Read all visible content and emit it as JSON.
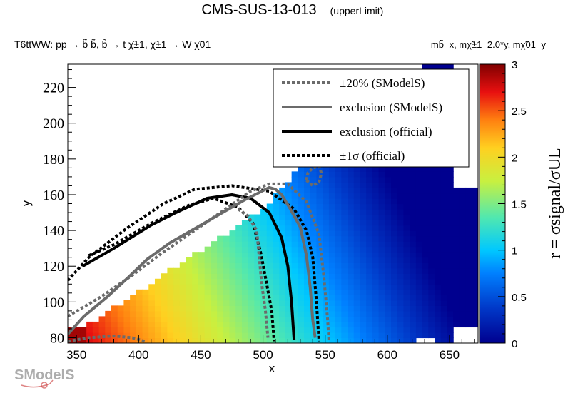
{
  "chart_data": {
    "type": "heatmap",
    "title": "CMS-SUS-13-013",
    "title_suffix": "(upperLimit)",
    "process": "T6ttWW: pp  → b̃ b̃, b̃  → t χ̃±1, χ̃±1 → W χ̃01",
    "mass_relation": "mb̃=x, mχ̃±1=2.0*y, mχ̃01=y",
    "xlabel": "x",
    "ylabel": "y",
    "xlim": [
      343,
      673
    ],
    "ylim": [
      77,
      233
    ],
    "x_ticks": [
      "350",
      "400",
      "450",
      "500",
      "550",
      "600",
      "650"
    ],
    "y_ticks": [
      "80",
      "100",
      "120",
      "140",
      "160",
      "180",
      "200",
      "220"
    ],
    "colorbar": {
      "label": "r = σsignal/σUL",
      "range": [
        0,
        3
      ],
      "ticks": [
        "0",
        "0.5",
        "1",
        "1.5",
        "2",
        "2.5",
        "3"
      ]
    },
    "legend": {
      "placement": "top-right",
      "entries": [
        {
          "label": "±20% (SModelS)",
          "style": "dotted",
          "color": "#6b6b6b"
        },
        {
          "label": "exclusion (SModelS)",
          "style": "solid",
          "color": "#6b6b6b"
        },
        {
          "label": "exclusion (official)",
          "style": "solid",
          "color": "#000000"
        },
        {
          "label": "±1σ (official)",
          "style": "dotted",
          "color": "#000000"
        }
      ]
    },
    "series": [
      {
        "name": "exclusion (official)",
        "style": "solid",
        "color": "#000000",
        "points": [
          [
            355,
            120
          ],
          [
            380,
            130
          ],
          [
            410,
            143
          ],
          [
            430,
            150
          ],
          [
            455,
            158
          ],
          [
            475,
            160
          ],
          [
            490,
            158
          ],
          [
            505,
            150
          ],
          [
            515,
            136
          ],
          [
            520,
            120
          ],
          [
            523,
            100
          ],
          [
            525,
            79
          ]
        ]
      },
      {
        "name": "±1σ (official)",
        "style": "dotted",
        "color": "#000000",
        "points": [
          [
            343,
            112
          ],
          [
            360,
            125
          ],
          [
            390,
            141
          ],
          [
            420,
            155
          ],
          [
            445,
            163
          ],
          [
            475,
            165
          ],
          [
            505,
            162
          ],
          [
            525,
            152
          ],
          [
            535,
            140
          ],
          [
            540,
            125
          ],
          [
            543,
            100
          ],
          [
            545,
            78
          ]
        ]
      },
      {
        "name": "±1σ (official)",
        "style": "dotted",
        "color": "#000000",
        "points": [
          [
            360,
            126
          ],
          [
            380,
            132
          ],
          [
            410,
            144
          ],
          [
            440,
            154
          ],
          [
            460,
            158
          ],
          [
            480,
            153
          ],
          [
            492,
            144
          ],
          [
            498,
            128
          ],
          [
            503,
            110
          ],
          [
            507,
            95
          ],
          [
            509,
            78
          ]
        ]
      },
      {
        "name": "exclusion (SModelS)",
        "style": "solid",
        "color": "#6b6b6b",
        "points": [
          [
            343,
            82
          ],
          [
            356,
            92
          ],
          [
            375,
            103
          ],
          [
            392,
            114
          ],
          [
            407,
            124
          ],
          [
            425,
            133
          ],
          [
            445,
            141
          ],
          [
            465,
            149
          ],
          [
            485,
            157
          ],
          [
            505,
            164
          ],
          [
            510,
            163
          ],
          [
            515,
            160
          ],
          [
            522,
            152
          ],
          [
            530,
            142
          ],
          [
            535,
            126
          ],
          [
            538,
            108
          ],
          [
            540,
            90
          ],
          [
            542,
            80
          ]
        ]
      },
      {
        "name": "±20% (SModelS)",
        "style": "dotted",
        "color": "#6b6b6b",
        "points": [
          [
            343,
            92
          ],
          [
            370,
            103
          ],
          [
            395,
            115
          ],
          [
            420,
            128
          ],
          [
            445,
            140
          ],
          [
            470,
            152
          ],
          [
            490,
            162
          ],
          [
            505,
            166
          ],
          [
            520,
            166
          ],
          [
            535,
            156
          ],
          [
            545,
            138
          ],
          [
            549,
            114
          ],
          [
            552,
            90
          ],
          [
            553,
            78
          ]
        ]
      },
      {
        "name": "±20% (SModelS)",
        "style": "dotted",
        "color": "#6b6b6b",
        "points": [
          [
            343,
            78
          ],
          [
            360,
            80
          ],
          [
            380,
            81
          ],
          [
            395,
            80
          ],
          [
            405,
            78
          ]
        ]
      },
      {
        "name": "±20% (SModelS)",
        "style": "dotted",
        "color": "#6b6b6b",
        "points": [
          [
            480,
            152
          ],
          [
            488,
            148
          ],
          [
            495,
            140
          ],
          [
            497,
            125
          ],
          [
            499,
            110
          ],
          [
            502,
            95
          ],
          [
            504,
            80
          ]
        ]
      },
      {
        "name": "±20% (SModelS)",
        "style": "dotted",
        "color": "#6b6b6b",
        "points": [
          [
            535,
            168
          ],
          [
            540,
            165
          ],
          [
            545,
            167
          ],
          [
            547,
            172
          ],
          [
            545,
            176
          ],
          [
            540,
            175
          ],
          [
            536,
            172
          ],
          [
            535,
            168
          ]
        ]
      }
    ]
  },
  "watermark": "SModelS"
}
